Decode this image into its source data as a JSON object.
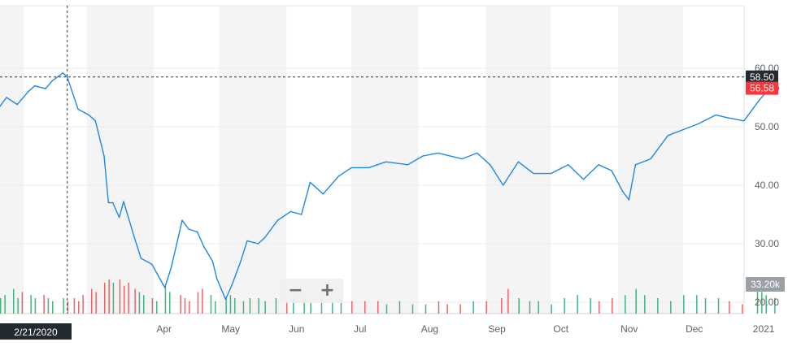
{
  "chart_data": {
    "type": "line",
    "series": [
      {
        "dates": [
          "2020-01-21",
          "2020-01-24",
          "2020-01-29",
          "2020-02-03",
          "2020-02-06",
          "2020-02-11",
          "2020-02-14",
          "2020-02-19",
          "2020-02-21",
          "2020-02-26",
          "2020-03-02",
          "2020-03-05",
          "2020-03-09",
          "2020-03-11",
          "2020-03-13",
          "2020-03-16",
          "2020-03-18",
          "2020-03-23",
          "2020-03-26",
          "2020-03-31",
          "2020-04-03",
          "2020-04-06",
          "2020-04-09",
          "2020-04-14",
          "2020-04-17",
          "2020-04-21",
          "2020-04-24",
          "2020-04-28",
          "2020-04-30",
          "2020-05-04",
          "2020-05-07",
          "2020-05-11",
          "2020-05-14",
          "2020-05-19",
          "2020-05-22",
          "2020-05-28",
          "2020-06-03",
          "2020-06-08",
          "2020-06-12",
          "2020-06-18",
          "2020-06-25",
          "2020-07-01",
          "2020-07-09",
          "2020-07-17",
          "2020-07-27",
          "2020-08-03",
          "2020-08-10",
          "2020-08-21",
          "2020-08-28",
          "2020-09-03",
          "2020-09-09",
          "2020-09-16",
          "2020-09-23",
          "2020-10-01",
          "2020-10-09",
          "2020-10-16",
          "2020-10-23",
          "2020-10-29",
          "2020-11-03",
          "2020-11-06",
          "2020-11-09",
          "2020-11-16",
          "2020-11-24",
          "2020-12-01",
          "2020-12-08",
          "2020-12-16",
          "2020-12-22",
          "2020-12-29",
          "2021-01-05",
          "2021-01-08",
          "2021-01-11",
          "2021-01-13"
        ],
        "values": [
          53.5,
          55.0,
          53.8,
          56.0,
          57.0,
          56.5,
          57.8,
          59.2,
          58.5,
          53.0,
          52.0,
          51.0,
          45.0,
          37.0,
          37.0,
          34.5,
          37.2,
          31.0,
          27.5,
          26.5,
          24.5,
          22.5,
          26.0,
          34.0,
          32.5,
          32.0,
          29.5,
          27.0,
          24.0,
          20.5,
          23.0,
          27.0,
          30.5,
          30.0,
          31.0,
          34.0,
          35.5,
          35.0,
          40.5,
          38.5,
          41.5,
          43.0,
          43.0,
          44.0,
          43.5,
          45.0,
          45.5,
          44.5,
          45.5,
          43.5,
          40.0,
          44.0,
          42.0,
          42.0,
          43.5,
          41.0,
          43.5,
          42.5,
          39.0,
          37.5,
          43.5,
          44.5,
          48.5,
          49.5,
          50.5,
          52.0,
          51.5,
          51.0,
          54.5,
          55.8,
          56.0,
          56.58
        ]
      }
    ],
    "x_tick_labels": [
      "Apr",
      "May",
      "Jun",
      "Jul",
      "Aug",
      "Sep",
      "Oct",
      "Nov",
      "Dec",
      "2021"
    ],
    "y_tick_labels": [
      "60.00",
      "50.00",
      "40.00",
      "30.00",
      "20.00"
    ],
    "ylim": [
      17.5,
      70
    ],
    "ymax_ticks": [
      60,
      50,
      40,
      30,
      20
    ],
    "crosshair": {
      "date_label": "2/21/2020",
      "value_label": "58.50",
      "value": 58.5,
      "date": "2020-02-21"
    },
    "last_price_label": "56.58",
    "last_price": 56.58,
    "volume_label": "33.20k",
    "volume_bars": [
      {
        "d": "2020-01-21",
        "v": 0.5,
        "c": "g"
      },
      {
        "d": "2020-01-23",
        "v": 0.6,
        "c": "g"
      },
      {
        "d": "2020-01-27",
        "v": 0.8,
        "c": "g"
      },
      {
        "d": "2020-01-29",
        "v": 0.5,
        "c": "g"
      },
      {
        "d": "2020-01-31",
        "v": 0.7,
        "c": "r"
      },
      {
        "d": "2020-02-04",
        "v": 0.6,
        "c": "g"
      },
      {
        "d": "2020-02-06",
        "v": 0.5,
        "c": "g"
      },
      {
        "d": "2020-02-10",
        "v": 0.6,
        "c": "r"
      },
      {
        "d": "2020-02-12",
        "v": 0.5,
        "c": "g"
      },
      {
        "d": "2020-02-14",
        "v": 0.4,
        "c": "g"
      },
      {
        "d": "2020-02-19",
        "v": 0.5,
        "c": "g"
      },
      {
        "d": "2020-02-21",
        "v": 0.4,
        "c": "r"
      },
      {
        "d": "2020-02-24",
        "v": 0.5,
        "c": "r"
      },
      {
        "d": "2020-02-26",
        "v": 0.4,
        "c": "r"
      },
      {
        "d": "2020-02-28",
        "v": 0.6,
        "c": "r"
      },
      {
        "d": "2020-03-03",
        "v": 0.8,
        "c": "r"
      },
      {
        "d": "2020-03-05",
        "v": 0.7,
        "c": "r"
      },
      {
        "d": "2020-03-09",
        "v": 1.0,
        "c": "r"
      },
      {
        "d": "2020-03-11",
        "v": 1.1,
        "c": "r"
      },
      {
        "d": "2020-03-13",
        "v": 1.0,
        "c": "g"
      },
      {
        "d": "2020-03-16",
        "v": 1.1,
        "c": "r"
      },
      {
        "d": "2020-03-18",
        "v": 0.9,
        "c": "r"
      },
      {
        "d": "2020-03-20",
        "v": 1.0,
        "c": "r"
      },
      {
        "d": "2020-03-23",
        "v": 0.8,
        "c": "r"
      },
      {
        "d": "2020-03-25",
        "v": 0.7,
        "c": "g"
      },
      {
        "d": "2020-03-27",
        "v": 0.6,
        "c": "g"
      },
      {
        "d": "2020-03-31",
        "v": 0.5,
        "c": "r"
      },
      {
        "d": "2020-04-02",
        "v": 0.4,
        "c": "g"
      },
      {
        "d": "2020-04-06",
        "v": 0.9,
        "c": "g"
      },
      {
        "d": "2020-04-08",
        "v": 0.7,
        "c": "g"
      },
      {
        "d": "2020-04-13",
        "v": 0.6,
        "c": "r"
      },
      {
        "d": "2020-04-15",
        "v": 0.5,
        "c": "r"
      },
      {
        "d": "2020-04-17",
        "v": 0.4,
        "c": "r"
      },
      {
        "d": "2020-04-21",
        "v": 0.7,
        "c": "r"
      },
      {
        "d": "2020-04-23",
        "v": 0.8,
        "c": "r"
      },
      {
        "d": "2020-04-27",
        "v": 0.6,
        "c": "g"
      },
      {
        "d": "2020-04-29",
        "v": 0.4,
        "c": "g"
      },
      {
        "d": "2020-05-04",
        "v": 0.5,
        "c": "g"
      },
      {
        "d": "2020-05-06",
        "v": 0.6,
        "c": "g"
      },
      {
        "d": "2020-05-08",
        "v": 0.5,
        "c": "g"
      },
      {
        "d": "2020-05-12",
        "v": 0.4,
        "c": "g"
      },
      {
        "d": "2020-05-15",
        "v": 0.5,
        "c": "g"
      },
      {
        "d": "2020-05-19",
        "v": 0.5,
        "c": "g"
      },
      {
        "d": "2020-05-22",
        "v": 0.4,
        "c": "g"
      },
      {
        "d": "2020-05-27",
        "v": 0.5,
        "c": "g"
      },
      {
        "d": "2020-06-01",
        "v": 0.4,
        "c": "r"
      },
      {
        "d": "2020-06-04",
        "v": 0.5,
        "c": "g"
      },
      {
        "d": "2020-06-09",
        "v": 0.5,
        "c": "g"
      },
      {
        "d": "2020-06-12",
        "v": 0.4,
        "c": "g"
      },
      {
        "d": "2020-06-17",
        "v": 0.5,
        "c": "g"
      },
      {
        "d": "2020-06-22",
        "v": 0.4,
        "c": "g"
      },
      {
        "d": "2020-06-26",
        "v": 0.5,
        "c": "g"
      },
      {
        "d": "2020-07-01",
        "v": 0.4,
        "c": "r"
      },
      {
        "d": "2020-07-07",
        "v": 0.4,
        "c": "r"
      },
      {
        "d": "2020-07-13",
        "v": 0.4,
        "c": "r"
      },
      {
        "d": "2020-07-17",
        "v": 0.3,
        "c": "g"
      },
      {
        "d": "2020-07-23",
        "v": 0.4,
        "c": "g"
      },
      {
        "d": "2020-07-29",
        "v": 0.3,
        "c": "g"
      },
      {
        "d": "2020-08-04",
        "v": 0.3,
        "c": "g"
      },
      {
        "d": "2020-08-10",
        "v": 0.4,
        "c": "r"
      },
      {
        "d": "2020-08-14",
        "v": 0.3,
        "c": "r"
      },
      {
        "d": "2020-08-20",
        "v": 0.3,
        "c": "r"
      },
      {
        "d": "2020-08-26",
        "v": 0.4,
        "c": "g"
      },
      {
        "d": "2020-09-01",
        "v": 0.4,
        "c": "r"
      },
      {
        "d": "2020-09-08",
        "v": 0.5,
        "c": "r"
      },
      {
        "d": "2020-09-11",
        "v": 0.8,
        "c": "r"
      },
      {
        "d": "2020-09-16",
        "v": 0.5,
        "c": "g"
      },
      {
        "d": "2020-09-21",
        "v": 0.4,
        "c": "g"
      },
      {
        "d": "2020-09-25",
        "v": 0.4,
        "c": "g"
      },
      {
        "d": "2020-10-01",
        "v": 0.3,
        "c": "g"
      },
      {
        "d": "2020-10-07",
        "v": 0.5,
        "c": "g"
      },
      {
        "d": "2020-10-13",
        "v": 0.6,
        "c": "g"
      },
      {
        "d": "2020-10-19",
        "v": 0.5,
        "c": "g"
      },
      {
        "d": "2020-10-23",
        "v": 0.4,
        "c": "r"
      },
      {
        "d": "2020-10-29",
        "v": 0.5,
        "c": "r"
      },
      {
        "d": "2020-11-04",
        "v": 0.6,
        "c": "g"
      },
      {
        "d": "2020-11-09",
        "v": 0.8,
        "c": "g"
      },
      {
        "d": "2020-11-13",
        "v": 0.6,
        "c": "g"
      },
      {
        "d": "2020-11-19",
        "v": 0.5,
        "c": "g"
      },
      {
        "d": "2020-11-25",
        "v": 0.4,
        "c": "g"
      },
      {
        "d": "2020-12-01",
        "v": 0.6,
        "c": "g"
      },
      {
        "d": "2020-12-07",
        "v": 0.6,
        "c": "g"
      },
      {
        "d": "2020-12-11",
        "v": 0.5,
        "c": "g"
      },
      {
        "d": "2020-12-17",
        "v": 0.5,
        "c": "g"
      },
      {
        "d": "2020-12-22",
        "v": 0.4,
        "c": "r"
      },
      {
        "d": "2020-12-28",
        "v": 0.3,
        "c": "r"
      },
      {
        "d": "2021-01-04",
        "v": 0.9,
        "c": "g"
      },
      {
        "d": "2021-01-06",
        "v": 0.7,
        "c": "g"
      },
      {
        "d": "2021-01-08",
        "v": 0.6,
        "c": "g"
      },
      {
        "d": "2021-01-12",
        "v": 0.5,
        "c": "g"
      }
    ],
    "colors": {
      "line": "#1e88e5",
      "last_price_badge": "#ff333a",
      "crosshair_badge": "#232a31",
      "volume_up": "#21a96a",
      "volume_down": "#e94b4b",
      "band": "#f4f4f4"
    }
  },
  "zoom": {
    "minus": "−",
    "plus": "+"
  }
}
